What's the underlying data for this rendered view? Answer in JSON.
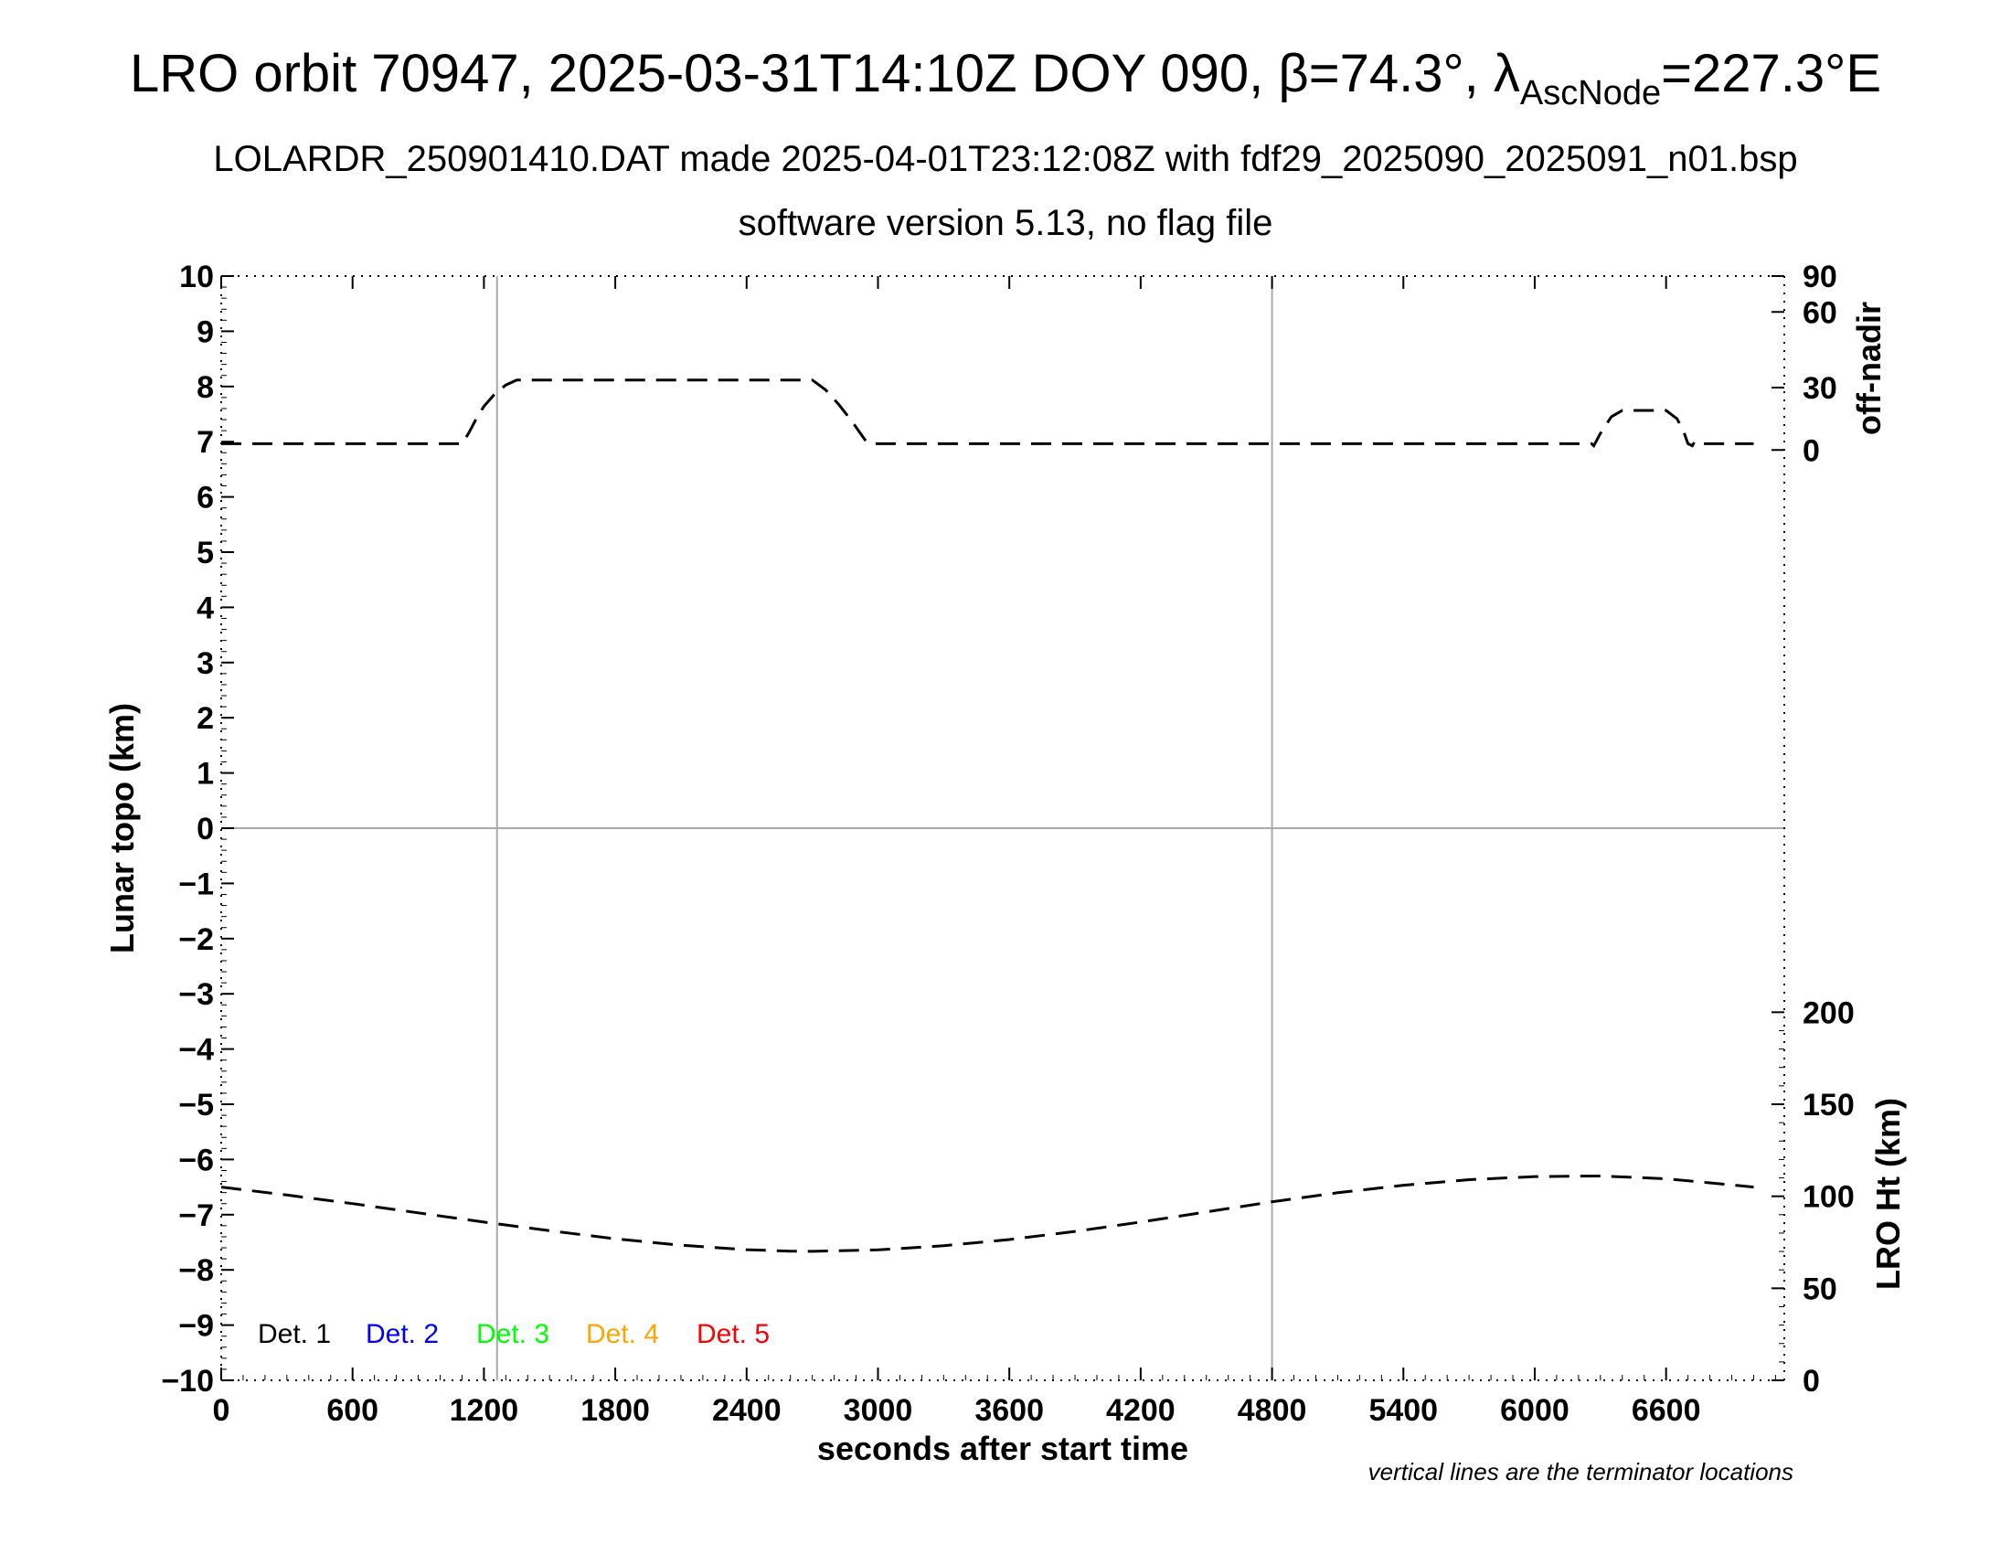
{
  "header": {
    "title_prefix": "LRO orbit 70947, 2025-03-31T14:10Z DOY 090, β=74.3°, λ",
    "title_sub": "AscNode",
    "title_suffix": "=227.3°E",
    "subtitle_line1": "LOLARDR_250901410.DAT made 2025-04-01T23:12:08Z with fdf29_2025090_2025091_n01.bsp",
    "subtitle_line2": "software version 5.13, no flag file"
  },
  "footer": {
    "note": "vertical lines are the terminator locations"
  },
  "chart_data": {
    "type": "line",
    "xlabel": "seconds after start time",
    "ylabel": "Lunar topo (km)",
    "xlim": [
      0,
      7140
    ],
    "ylim": [
      -10,
      10
    ],
    "x_ticks": [
      0,
      600,
      1200,
      1800,
      2400,
      3000,
      3600,
      4200,
      4800,
      5400,
      6000,
      6600
    ],
    "y_ticks": [
      10,
      9,
      8,
      7,
      6,
      5,
      4,
      3,
      2,
      1,
      0,
      -1,
      -2,
      -3,
      -4,
      -5,
      -6,
      -7,
      -8,
      -9,
      -10
    ],
    "y_tick_labels": [
      "10",
      "9",
      "8",
      "7",
      "6",
      "5",
      "4",
      "3",
      "2",
      "1",
      "0",
      "−1",
      "−2",
      "−3",
      "−4",
      "−5",
      "−6",
      "−7",
      "−8",
      "−9",
      "−10"
    ],
    "terminator_x": [
      1260,
      4800
    ],
    "zero_line": true,
    "right_axis_top": {
      "label": "off-nadir",
      "ticks": [
        0,
        30,
        60,
        90
      ],
      "tick_labels": [
        "0",
        "30",
        "60",
        "90"
      ]
    },
    "right_axis_bottom": {
      "label": "LRO Ht (km)",
      "ticks": [
        0,
        50,
        100,
        150,
        200
      ],
      "tick_labels": [
        "0",
        "50",
        "100",
        "150",
        "200"
      ]
    },
    "legend": [
      {
        "label": "Det. 1",
        "color": "#000000"
      },
      {
        "label": "Det. 2",
        "color": "#0000ff"
      },
      {
        "label": "Det. 3",
        "color": "#00ff00"
      },
      {
        "label": "Det. 4",
        "color": "#ffa500"
      },
      {
        "label": "Det. 5",
        "color": "#ff0000"
      }
    ],
    "series": [
      {
        "name": "off-nadir",
        "axis": "right_top",
        "style": "dashed",
        "x": [
          0,
          1100,
          1130,
          1160,
          1200,
          1250,
          1300,
          1350,
          2650,
          2700,
          2760,
          2820,
          2880,
          2920,
          2940,
          2960,
          3000,
          4000,
          5000,
          6000,
          6260,
          6270,
          6300,
          6350,
          6400,
          6600,
          6650,
          6680,
          6700,
          6720,
          6730,
          6740,
          6750,
          7000
        ],
        "y": [
          3,
          3,
          8,
          14,
          21,
          27,
          31,
          33,
          33,
          33,
          29,
          22,
          14,
          8,
          5,
          3,
          3,
          3,
          3,
          3,
          3,
          2,
          8,
          16,
          19,
          19,
          15,
          9,
          3,
          2,
          4,
          3,
          3,
          3
        ]
      },
      {
        "name": "LRO Ht (km)",
        "axis": "right_bottom",
        "style": "dashed",
        "x": [
          0,
          300,
          600,
          900,
          1200,
          1500,
          1800,
          2100,
          2400,
          2600,
          2700,
          3000,
          3300,
          3600,
          3900,
          4200,
          4500,
          4800,
          5100,
          5400,
          5700,
          6000,
          6300,
          6600,
          6800,
          7000
        ],
        "y": [
          105,
          100.7,
          96,
          91,
          86,
          81.3,
          76.9,
          73.4,
          71,
          70.2,
          70.1,
          70.9,
          73.1,
          76.5,
          80.9,
          86,
          91.5,
          97,
          101.9,
          106,
          109,
          110.7,
          111,
          109.5,
          107.3,
          105
        ]
      }
    ]
  }
}
